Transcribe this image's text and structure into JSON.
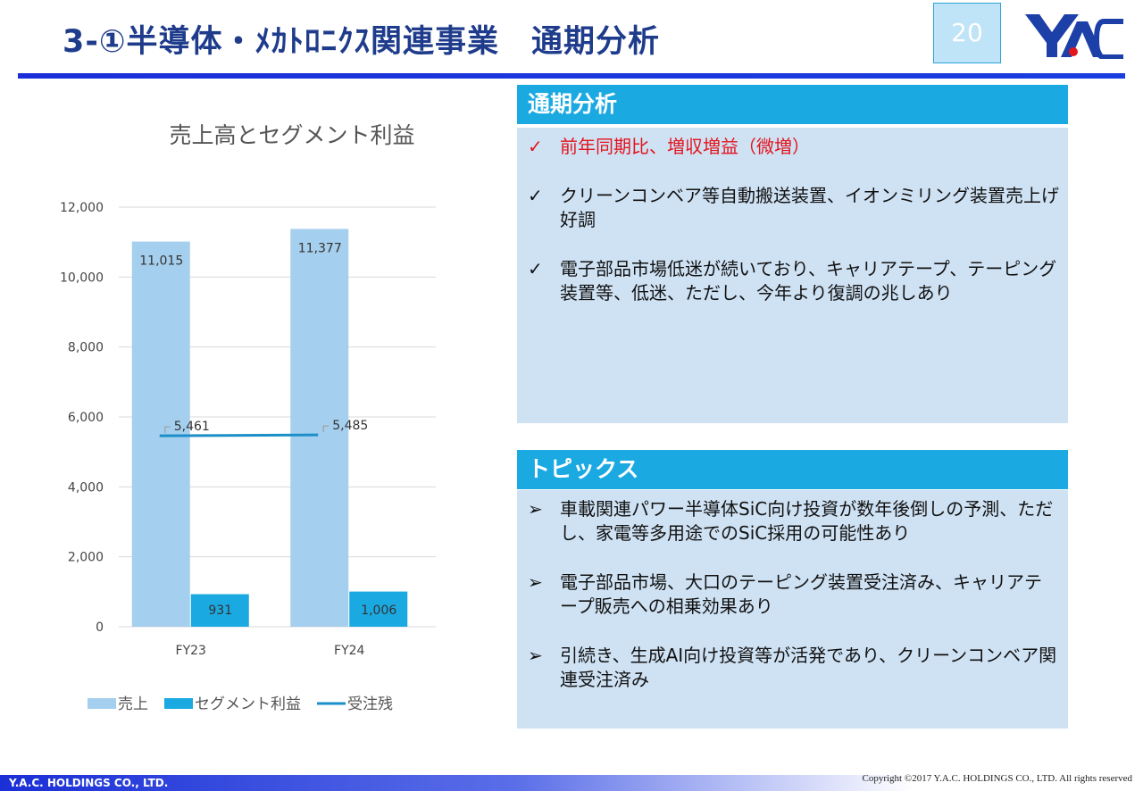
{
  "header": {
    "title": "3-①半導体・ﾒｶﾄﾛﾆｸｽ関連事業　通期分析",
    "page": "20"
  },
  "chart_data": {
    "type": "bar",
    "title": "売上高とセグメント利益",
    "categories": [
      "FY23",
      "FY24"
    ],
    "series": [
      {
        "name": "売上",
        "color": "#a5cfee",
        "values": [
          11015,
          11377
        ],
        "value_labels": [
          "11,015",
          "11,377"
        ]
      },
      {
        "name": "セグメント利益",
        "color": "#1ba9e1",
        "values": [
          931,
          1006
        ],
        "value_labels": [
          "931",
          "1,006"
        ]
      },
      {
        "name": "受注残",
        "type": "line",
        "color": "#1c8fc9",
        "values": [
          5461,
          5485
        ],
        "value_labels": [
          "5,461",
          "5,485"
        ]
      }
    ],
    "ylim": [
      0,
      12000
    ],
    "yticks": [
      0,
      {
        "value": 2000,
        "label": "2,000"
      },
      {
        "value": 4000,
        "label": "4,000"
      },
      {
        "value": 6000,
        "label": "6,000"
      },
      {
        "value": 8000,
        "label": "8,000"
      },
      {
        "value": 10000,
        "label": "10,000"
      },
      {
        "value": 12000,
        "label": "12,000"
      }
    ],
    "grid": true,
    "legend": "bottom"
  },
  "analysis": {
    "title": "通期分析",
    "bullet": "✓",
    "items": [
      {
        "text": "前年同期比、増収増益（微増）",
        "color": "#e3141c"
      },
      {
        "text": "クリーンコンベア等自動搬送装置、イオンミリング装置売上げ好調"
      },
      {
        "text": "電子部品市場低迷が続いており、キャリアテープ、テーピング装置等、低迷、ただし、今年より復調の兆しあり"
      }
    ]
  },
  "topics": {
    "title": "トピックス",
    "bullet": "➢",
    "items": [
      {
        "text": "車載関連パワー半導体SiC向け投資が数年後倒しの予測、ただし、家電等多用途でのSiC採用の可能性あり"
      },
      {
        "text": "電子部品市場、大口のテーピング装置受注済み、キャリアテープ販売への相乗効果あり"
      },
      {
        "text": "引続き、生成AI向け投資等が活発であり、クリーンコンベア関連受注済み"
      }
    ]
  },
  "footer": {
    "company": "Y.A.C. HOLDINGS CO., LTD.",
    "copyright": "Copyright ©2017 Y.A.C. HOLDINGS CO., LTD.  All rights reserved"
  }
}
